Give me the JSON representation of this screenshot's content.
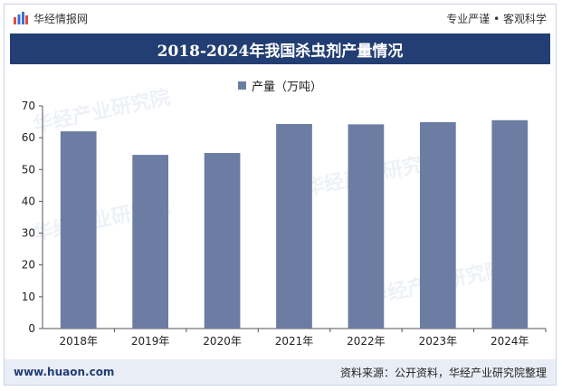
{
  "header": {
    "brand_name": "华经情报网",
    "tagline": "专业严谨 • 客观科学"
  },
  "title": "2018-2024年我国杀虫剂产量情况",
  "watermark_text": "华经产业研究院",
  "footer": {
    "url": "www.huaon.com",
    "source": "资料来源：公开资料，华经产业研究院整理"
  },
  "colors": {
    "title_bg": "#223e73",
    "bar": "#6b7da3",
    "footer_bg": "#e9eef6"
  },
  "chart_data": {
    "type": "bar",
    "categories": [
      "2018年",
      "2019年",
      "2020年",
      "2021年",
      "2022年",
      "2023年",
      "2024年"
    ],
    "series": [
      {
        "name": "产量（万吨）",
        "values": [
          62,
          54.6,
          55.2,
          64.3,
          64.2,
          64.9,
          65.5
        ]
      }
    ],
    "y_ticks": [
      0,
      10,
      20,
      30,
      40,
      50,
      60,
      70
    ],
    "ylim": [
      0,
      70
    ],
    "grid": false,
    "legend": "top-center"
  }
}
